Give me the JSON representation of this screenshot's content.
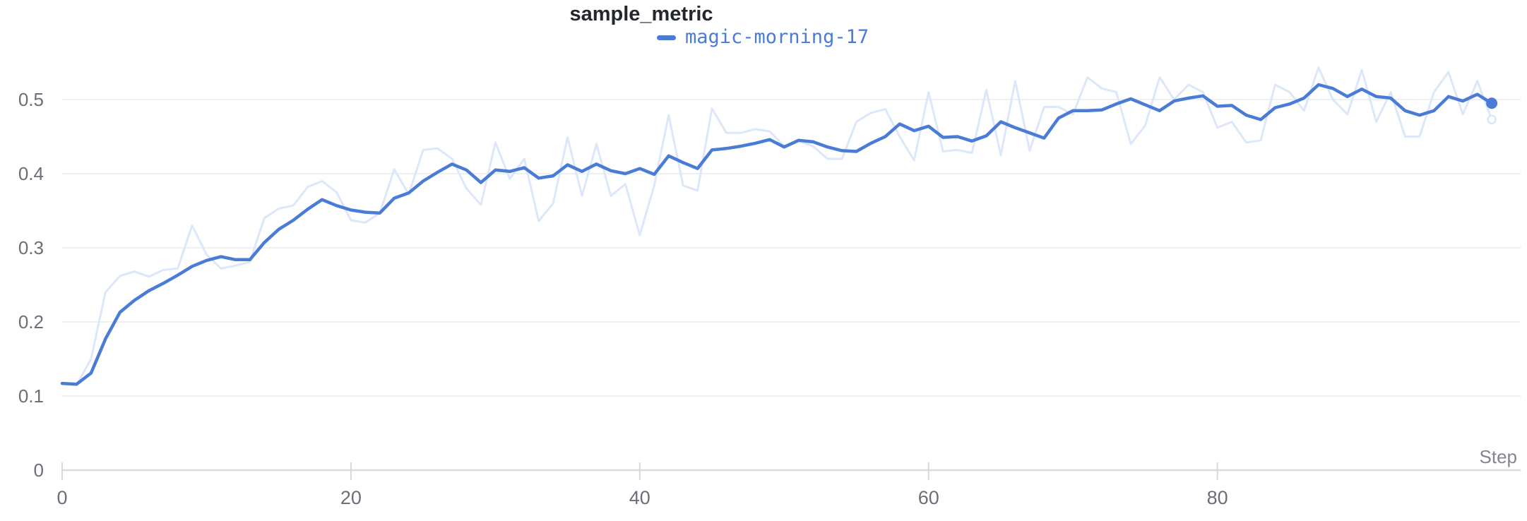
{
  "panel": {
    "title": "sample_metric",
    "legend": [
      {
        "run": "magic-morning-17",
        "color": "#4A7CD6"
      }
    ]
  },
  "axis": {
    "x": {
      "label": "Step",
      "ticks": [
        0,
        20,
        40,
        60,
        80
      ],
      "tick_labels": [
        "0",
        "20",
        "40",
        "60",
        "80"
      ],
      "range": [
        0,
        101
      ]
    },
    "y": {
      "ticks": [
        0,
        0.1,
        0.2,
        0.3,
        0.4,
        0.5
      ],
      "tick_labels": [
        "0",
        "0.1",
        "0.2",
        "0.3",
        "0.4",
        "0.5"
      ],
      "range": [
        0,
        0.5
      ]
    }
  },
  "colors": {
    "accent": "#4A7CD6",
    "raw_line": "#DCE7FA",
    "gridline": "#ECECEF",
    "axis_line": "#DCDCDF",
    "tick_mark": "#D8D8DB",
    "title_text": "#24272E",
    "tick_text": "#6E6E78",
    "axis_title_text": "#85858D"
  },
  "chart_data": {
    "type": "line",
    "title": "sample_metric",
    "xlabel": "Step",
    "ylabel": "",
    "xlim": [
      0,
      101
    ],
    "ylim": [
      0,
      0.5
    ],
    "grid": "horizontal",
    "legend_position": "top-center",
    "x": [
      0,
      1,
      2,
      3,
      4,
      5,
      6,
      7,
      8,
      9,
      10,
      11,
      12,
      13,
      14,
      15,
      16,
      17,
      18,
      19,
      20,
      21,
      22,
      23,
      24,
      25,
      26,
      27,
      28,
      29,
      30,
      31,
      32,
      33,
      34,
      35,
      36,
      37,
      38,
      39,
      40,
      41,
      42,
      43,
      44,
      45,
      46,
      47,
      48,
      49,
      50,
      51,
      52,
      53,
      54,
      55,
      56,
      57,
      58,
      59,
      60,
      61,
      62,
      63,
      64,
      65,
      66,
      67,
      68,
      69,
      70,
      71,
      72,
      73,
      74,
      75,
      76,
      77,
      78,
      79,
      80,
      81,
      82,
      83,
      84,
      85,
      86,
      87,
      88,
      89,
      90,
      91,
      92,
      93,
      94,
      95,
      96,
      97,
      98,
      99
    ],
    "series": [
      {
        "name": "magic-morning-17 (original, unsmoothed)",
        "role": "raw",
        "color": "#DCE7FA",
        "end_marker": "ring",
        "values": [
          0.117,
          0.115,
          0.15,
          0.24,
          0.262,
          0.268,
          0.261,
          0.27,
          0.272,
          0.33,
          0.291,
          0.272,
          0.276,
          0.281,
          0.34,
          0.353,
          0.357,
          0.382,
          0.39,
          0.375,
          0.337,
          0.334,
          0.347,
          0.406,
          0.372,
          0.432,
          0.434,
          0.42,
          0.38,
          0.358,
          0.442,
          0.393,
          0.42,
          0.336,
          0.36,
          0.449,
          0.37,
          0.44,
          0.37,
          0.386,
          0.317,
          0.384,
          0.479,
          0.384,
          0.377,
          0.488,
          0.455,
          0.455,
          0.46,
          0.457,
          0.437,
          0.444,
          0.437,
          0.42,
          0.42,
          0.47,
          0.482,
          0.487,
          0.45,
          0.418,
          0.51,
          0.43,
          0.432,
          0.428,
          0.513,
          0.425,
          0.525,
          0.431,
          0.49,
          0.49,
          0.48,
          0.53,
          0.515,
          0.51,
          0.44,
          0.465,
          0.53,
          0.5,
          0.52,
          0.51,
          0.462,
          0.47,
          0.442,
          0.445,
          0.52,
          0.51,
          0.485,
          0.543,
          0.5,
          0.48,
          0.54,
          0.47,
          0.51,
          0.45,
          0.45,
          0.51,
          0.537,
          0.48,
          0.525,
          0.473
        ]
      },
      {
        "name": "magic-morning-17 (smoothed)",
        "role": "smoothed",
        "color": "#4A7CD6",
        "end_marker": "dot",
        "values": [
          0.117,
          0.116,
          0.131,
          0.177,
          0.213,
          0.229,
          0.242,
          0.252,
          0.263,
          0.275,
          0.283,
          0.288,
          0.284,
          0.284,
          0.307,
          0.325,
          0.337,
          0.352,
          0.365,
          0.357,
          0.351,
          0.348,
          0.347,
          0.367,
          0.374,
          0.39,
          0.402,
          0.413,
          0.405,
          0.388,
          0.405,
          0.403,
          0.408,
          0.394,
          0.397,
          0.412,
          0.403,
          0.413,
          0.404,
          0.4,
          0.407,
          0.399,
          0.424,
          0.415,
          0.407,
          0.432,
          0.434,
          0.437,
          0.441,
          0.446,
          0.436,
          0.445,
          0.443,
          0.436,
          0.431,
          0.43,
          0.441,
          0.45,
          0.467,
          0.458,
          0.464,
          0.449,
          0.45,
          0.444,
          0.451,
          0.47,
          0.462,
          0.455,
          0.448,
          0.475,
          0.485,
          0.485,
          0.486,
          0.494,
          0.501,
          0.493,
          0.485,
          0.498,
          0.502,
          0.505,
          0.491,
          0.492,
          0.479,
          0.473,
          0.489,
          0.494,
          0.502,
          0.52,
          0.515,
          0.504,
          0.514,
          0.504,
          0.502,
          0.485,
          0.479,
          0.485,
          0.504,
          0.498,
          0.507,
          0.495
        ]
      }
    ]
  }
}
